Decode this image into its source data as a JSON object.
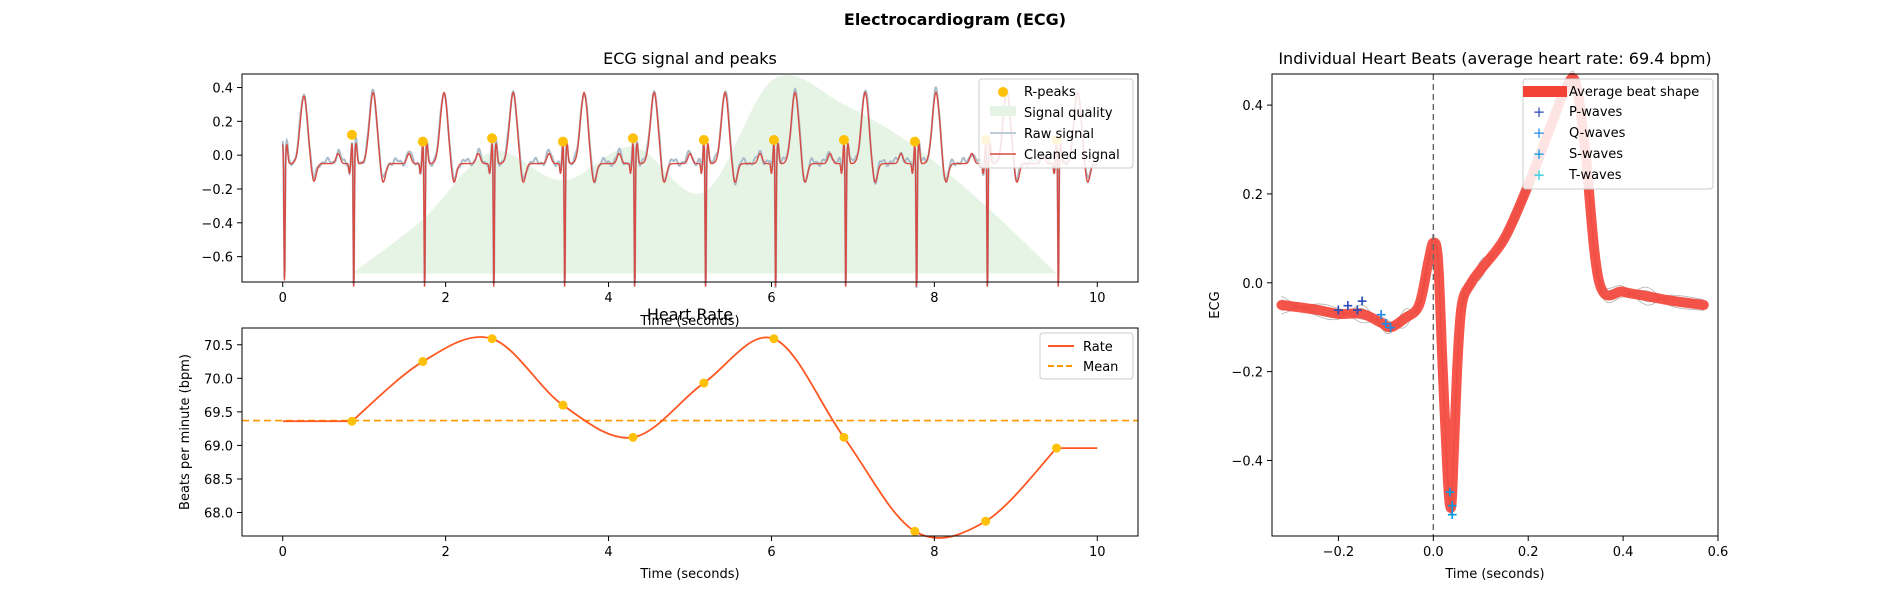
{
  "figure_title": "Electrocardiogram (ECG)",
  "chart_data": [
    {
      "type": "line",
      "title": "ECG signal and peaks",
      "xlabel": "Time (seconds)",
      "ylabel": "",
      "xlim": [
        -0.5,
        10.5
      ],
      "ylim": [
        -0.75,
        0.48
      ],
      "xticks": [
        "0",
        "2",
        "4",
        "6",
        "8",
        "10"
      ],
      "yticks": [
        "0.4",
        "0.2",
        "0.0",
        "−0.2",
        "−0.4",
        "−0.6"
      ],
      "legend_position": "top-right",
      "legend": [
        "R-peaks",
        "Signal quality",
        "Raw signal",
        "Cleaned signal"
      ],
      "r_peaks": {
        "name": "R-peaks",
        "x": [
          0.85,
          1.72,
          2.57,
          3.44,
          4.3,
          5.17,
          6.03,
          6.89,
          7.76,
          8.63,
          9.5
        ],
        "y": [
          0.12,
          0.08,
          0.1,
          0.08,
          0.1,
          0.09,
          0.09,
          0.09,
          0.08,
          0.09,
          0.09
        ]
      },
      "signal_quality": {
        "name": "Signal quality",
        "x": [
          0.85,
          1.72,
          2.57,
          3.44,
          4.3,
          5.17,
          6.03,
          6.89,
          7.76,
          8.63,
          9.5
        ],
        "y": [
          -0.7,
          -0.38,
          0.02,
          -0.15,
          0.05,
          -0.22,
          0.45,
          0.3,
          0.05,
          -0.3,
          -0.7
        ]
      },
      "raw_signal": {
        "name": "Raw signal",
        "color": "#a9bcc8"
      },
      "cleaned_signal": {
        "name": "Cleaned signal",
        "color": "#d84a42"
      },
      "grid": false
    },
    {
      "type": "line",
      "title": "Heart Rate",
      "xlabel": "Time (seconds)",
      "ylabel": "Beats per minute (bpm)",
      "xlim": [
        -0.5,
        10.5
      ],
      "ylim": [
        67.65,
        70.75
      ],
      "xticks": [
        "0",
        "2",
        "4",
        "6",
        "8",
        "10"
      ],
      "yticks": [
        "70.5",
        "70.0",
        "69.5",
        "69.0",
        "68.5",
        "68.0"
      ],
      "legend_position": "top-right",
      "legend": [
        "Rate",
        "Mean"
      ],
      "rate": {
        "name": "Rate",
        "x": [
          0.85,
          1.72,
          2.57,
          3.44,
          4.3,
          5.17,
          6.03,
          6.89,
          7.76,
          8.63,
          9.5
        ],
        "y": [
          69.36,
          70.25,
          70.59,
          69.6,
          69.12,
          69.93,
          70.59,
          69.12,
          67.72,
          67.87,
          68.96
        ]
      },
      "line_start": [
        0,
        69.36
      ],
      "line_end": [
        10,
        68.96
      ],
      "mean": {
        "name": "Mean",
        "y": 69.37
      },
      "grid": false
    },
    {
      "type": "line",
      "title": "Individual Heart Beats (average heart rate: 69.4 bpm)",
      "xlabel": "Time (seconds)",
      "ylabel": "ECG",
      "xlim": [
        -0.34,
        0.6
      ],
      "ylim": [
        -0.57,
        0.47
      ],
      "xticks": [
        "−0.2",
        "0.0",
        "0.2",
        "0.4",
        "0.6"
      ],
      "yticks": [
        "0.4",
        "0.2",
        "0.0",
        "−0.2",
        "−0.4"
      ],
      "legend_position": "top-right",
      "legend": [
        "Average beat shape",
        "P-waves",
        "Q-waves",
        "S-waves",
        "T-waves"
      ],
      "average_beat": {
        "name": "Average beat shape",
        "x": [
          -0.32,
          -0.25,
          -0.2,
          -0.15,
          -0.11,
          -0.09,
          -0.06,
          -0.03,
          -0.01,
          0.0,
          0.01,
          0.02,
          0.03,
          0.035,
          0.04,
          0.05,
          0.06,
          0.08,
          0.1,
          0.15,
          0.2,
          0.25,
          0.28,
          0.3,
          0.32,
          0.35,
          0.4,
          0.45,
          0.5,
          0.57
        ],
        "y": [
          -0.05,
          -0.06,
          -0.07,
          -0.07,
          -0.09,
          -0.1,
          -0.08,
          -0.05,
          0.05,
          0.09,
          0.05,
          -0.2,
          -0.43,
          -0.5,
          -0.47,
          -0.2,
          -0.05,
          0.0,
          0.03,
          0.1,
          0.22,
          0.36,
          0.44,
          0.45,
          0.3,
          0.0,
          -0.02,
          -0.03,
          -0.04,
          -0.05
        ]
      },
      "p_waves": {
        "name": "P-waves",
        "x": [
          -0.2,
          -0.18,
          -0.16,
          -0.15
        ],
        "y": [
          -0.06,
          -0.05,
          -0.06,
          -0.04
        ]
      },
      "q_waves": {
        "name": "Q-waves",
        "x": [
          -0.11,
          -0.1,
          -0.09
        ],
        "y": [
          -0.07,
          -0.09,
          -0.1
        ]
      },
      "s_waves": {
        "name": "S-waves",
        "x": [
          0.035,
          0.04,
          0.04
        ],
        "y": [
          -0.47,
          -0.5,
          -0.52
        ]
      },
      "t_waves": {
        "name": "T-waves",
        "x": [],
        "y": []
      },
      "vertical_line_x": 0,
      "grid": false
    }
  ],
  "colors": {
    "cleaned": "#d84a42",
    "raw": "#a9bcc8",
    "quality": "#e6f4e6",
    "rpeak": "#ffc107",
    "rate": "#ff5722",
    "mean": "#ff9800",
    "avgbeat": "#f44336",
    "p": "#2a4bb8",
    "q": "#1e88e5",
    "s": "#039be5",
    "t": "#26c6da"
  }
}
